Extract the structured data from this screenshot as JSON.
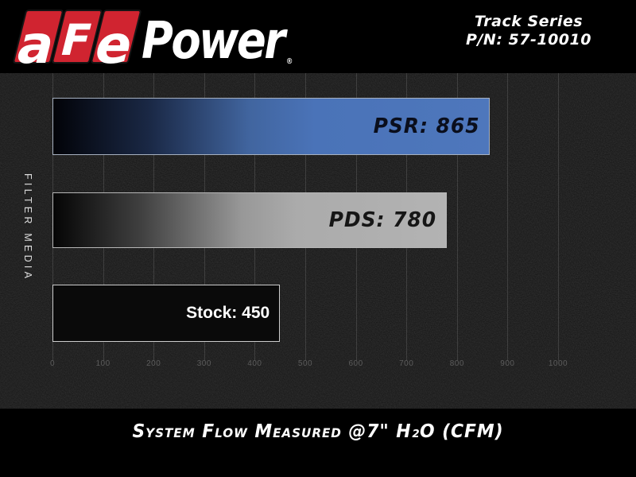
{
  "header": {
    "logo": {
      "letters": [
        "a",
        "F",
        "e"
      ],
      "wordmark": "Power",
      "registered_mark": "®",
      "tile_color": "#d02430"
    },
    "product_line": "Track Series",
    "part_number": "P/N: 57-10010"
  },
  "chart_data": {
    "type": "bar",
    "orientation": "horizontal",
    "title": "",
    "ylabel": "FILTER MEDIA",
    "xlabel": "System Flow Measured @7\" H₂O (CFM)",
    "xlim": [
      0,
      1000
    ],
    "x_ticks": [
      0,
      100,
      200,
      300,
      400,
      500,
      600,
      700,
      800,
      900,
      1000
    ],
    "grid": "vertical",
    "legend": "none",
    "categories": [
      "PSR",
      "PDS",
      "Stock"
    ],
    "values": [
      865,
      780,
      450
    ],
    "series": [
      {
        "name": "PSR",
        "value": 865,
        "label": "PSR: 865",
        "gradient_stops": [
          "#020308 0%",
          "#1a2845 22%",
          "#41659f 45%",
          "#4a73b8 60%",
          "#4e77bc 100%"
        ],
        "border_color": "#a7b1c0",
        "label_color": "#0a0e1c",
        "label_style": "techno"
      },
      {
        "name": "PDS",
        "value": 780,
        "label": "PDS: 780",
        "gradient_stops": [
          "#050505 0%",
          "#3f3f3f 22%",
          "#989898 48%",
          "#ababab 62%",
          "#b3b3b3 100%"
        ],
        "border_color": "#b7b7b7",
        "label_color": "#161616",
        "label_style": "techno"
      },
      {
        "name": "Stock",
        "value": 450,
        "label": "Stock: 450",
        "gradient_stops": [
          "#0a0a0a 0%",
          "#0a0a0a 100%"
        ],
        "border_color": "#cccccc",
        "label_color": "#ffffff",
        "label_style": "plain"
      }
    ]
  }
}
